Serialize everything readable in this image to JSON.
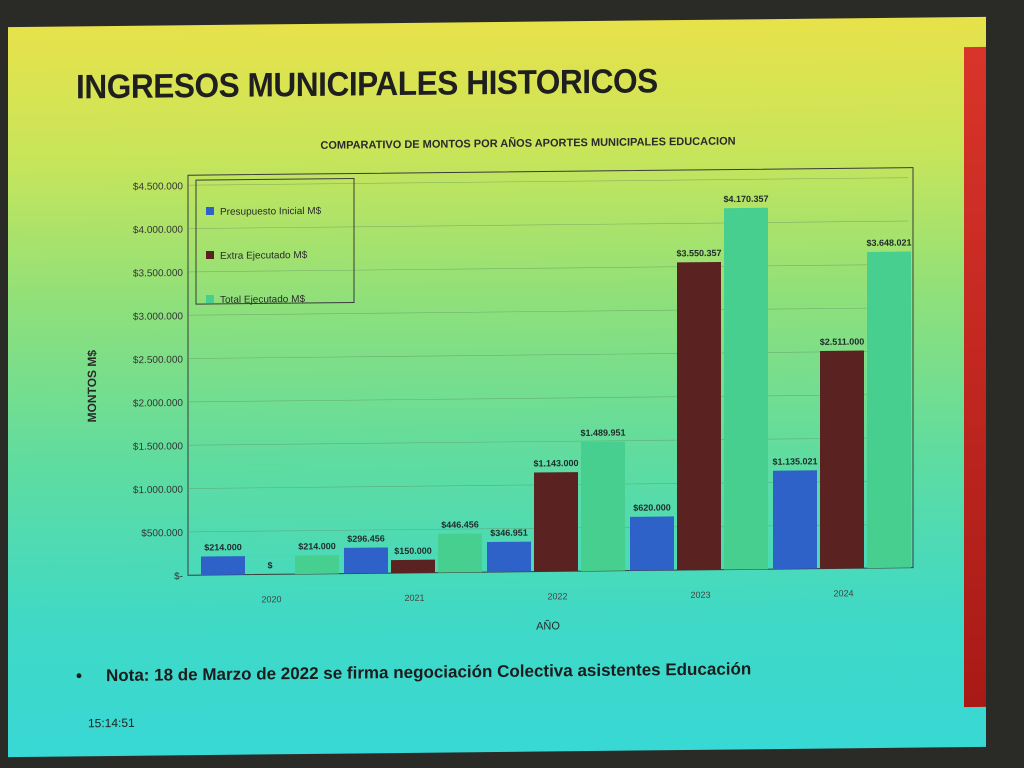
{
  "slide": {
    "title": "INGRESOS MUNICIPALES HISTORICOS",
    "note_text": "Nota: 18 de Marzo de 2022 se firma negociación Colectiva asistentes Educación",
    "clock": "15:14:51"
  },
  "colors": {
    "presupuesto": "#2f62c8",
    "extra": "#5a2220",
    "total": "#46cf8e",
    "accent_red": "#c8281e"
  },
  "chart_data": {
    "type": "bar",
    "title": "COMPARATIVO DE MONTOS POR AÑOS APORTES MUNICIPALES EDUCACION",
    "xlabel": "AÑO",
    "ylabel": "MONTOS M$",
    "ylim": [
      0,
      4500000
    ],
    "y_ticks": [
      "$-",
      "$500.000",
      "$1.000.000",
      "$1.500.000",
      "$2.000.000",
      "$2.500.000",
      "$3.000.000",
      "$3.500.000",
      "$4.000.000",
      "$4.500.000"
    ],
    "grid": true,
    "legend_position": "top-left",
    "categories": [
      "2020",
      "2021",
      "2022",
      "2023",
      "2024"
    ],
    "series": [
      {
        "name": "Presupuesto Inicial M$",
        "values": [
          214000,
          296456,
          346951,
          620000,
          1135021
        ],
        "labels": [
          "$214.000",
          "$296.456",
          "$346.951",
          "$620.000",
          "$1.135.021"
        ]
      },
      {
        "name": "Extra Ejecutado M$",
        "values": [
          0,
          150000,
          1143000,
          3550357,
          2511000
        ],
        "labels": [
          "$",
          "$150.000",
          "$1.143.000",
          "$3.550.357",
          "$2.511.000"
        ]
      },
      {
        "name": "Total Ejecutado M$",
        "values": [
          214000,
          446456,
          1489951,
          4170357,
          3648021
        ],
        "labels": [
          "$214.000",
          "$446.456",
          "$1.489.951",
          "$4.170.357",
          "$3.648.021"
        ]
      }
    ]
  }
}
